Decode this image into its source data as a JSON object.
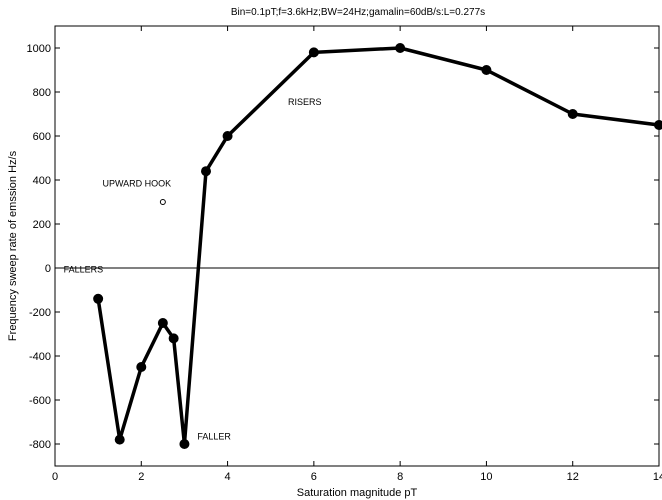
{
  "chart_data": {
    "type": "line",
    "title": "Bin=0.1pT;f=3.6kHz;BW=24Hz;gamalin=60dB/s:L=0.277s",
    "xlabel": "Saturation magnitude pT",
    "ylabel": "Frequency sweep rate of emssion Hz/s",
    "xlim": [
      0,
      14
    ],
    "ylim": [
      -900,
      1100
    ],
    "xticks": [
      0,
      2,
      4,
      6,
      8,
      10,
      12,
      14
    ],
    "yticks": [
      -800,
      -600,
      -400,
      -200,
      0,
      200,
      400,
      600,
      800,
      1000
    ],
    "grid": false,
    "zero_line": true,
    "series": [
      {
        "color": "#000000",
        "marker": "filled-circle",
        "x": [
          1,
          1.5,
          2,
          2.5,
          2.75,
          3,
          3.5,
          4,
          6,
          8,
          10,
          12,
          14
        ],
        "y": [
          -140,
          -780,
          -450,
          -250,
          -320,
          -800,
          440,
          600,
          980,
          1000,
          900,
          700,
          650
        ]
      }
    ],
    "isolated_points": [
      {
        "x": 2.5,
        "y": 300,
        "marker": "open-circle"
      }
    ],
    "annotations": [
      {
        "text": "RISERS",
        "x": 5.4,
        "y": 740
      },
      {
        "text": "UPWARD HOOK",
        "x": 1.1,
        "y": 370
      },
      {
        "text": "FALLERS",
        "x": 0.2,
        "y": -20
      },
      {
        "text": "FALLER",
        "x": 3.3,
        "y": -780
      }
    ]
  }
}
